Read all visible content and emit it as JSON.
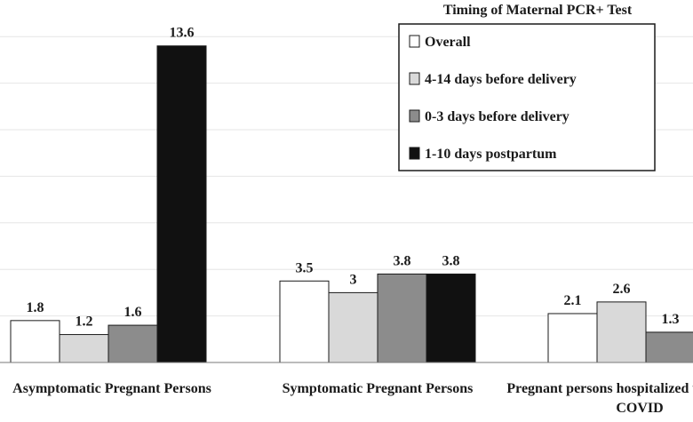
{
  "chart_data": {
    "type": "bar",
    "title": "",
    "xlabel": "",
    "ylabel": "",
    "ylim": [
      0,
      15
    ],
    "grid": true,
    "legend_position": "top-right",
    "categories": [
      "Asymptomatic Pregnant Persons",
      "Symptomatic Pregnant Persons",
      "Pregnant persons hospitalized with COVID"
    ],
    "legend_title": "Timing of Maternal PCR+ Test",
    "series": [
      {
        "name": "Overall",
        "color": "#ffffff",
        "values": [
          1.8,
          3.5,
          2.1
        ],
        "labels": [
          "1.8",
          "3.5",
          "2.1"
        ]
      },
      {
        "name": "4-14 days before delivery",
        "color": "#d9d9d9",
        "values": [
          1.2,
          3,
          2.6
        ],
        "labels": [
          "1.2",
          "3",
          "2.6"
        ]
      },
      {
        "name": "0-3 days before delivery",
        "color": "#8c8c8c",
        "values": [
          1.6,
          3.8,
          1.3
        ],
        "labels": [
          "1.6",
          "3.8",
          "1.3"
        ]
      },
      {
        "name": "1-10 days postpartum",
        "color": "#111111",
        "values": [
          13.6,
          3.8,
          null
        ],
        "labels": [
          "13.6",
          "3.8",
          ""
        ]
      }
    ]
  }
}
